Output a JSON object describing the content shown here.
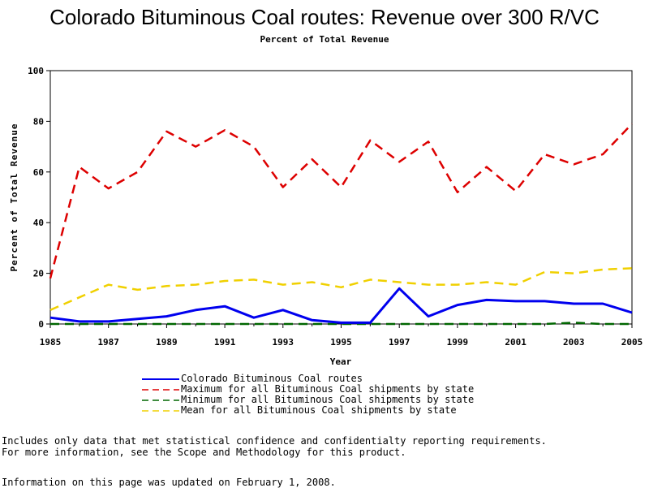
{
  "chart_data": {
    "type": "line",
    "title": "Colorado Bituminous Coal routes: Revenue over 300 R/VC",
    "subtitle": "Percent of Total Revenue",
    "xlabel": "Year",
    "ylabel": "Percent of Total Revenue",
    "xlim": [
      1985,
      2005
    ],
    "ylim": [
      0,
      100
    ],
    "x_ticks": [
      "1985",
      "1987",
      "1989",
      "1991",
      "1993",
      "1995",
      "1997",
      "1999",
      "2001",
      "2003",
      "2005"
    ],
    "y_ticks": [
      "0",
      "20",
      "40",
      "60",
      "80",
      "100"
    ],
    "x": [
      1985,
      1986,
      1987,
      1988,
      1989,
      1990,
      1991,
      1992,
      1993,
      1994,
      1995,
      1996,
      1997,
      1998,
      1999,
      2000,
      2001,
      2002,
      2003,
      2004,
      2005
    ],
    "series": [
      {
        "name": "Colorado Bituminous Coal routes",
        "color": "#0000ee",
        "style": "solid",
        "values": [
          2.5,
          1,
          1,
          2,
          3,
          5.5,
          7,
          2.5,
          5.5,
          1.5,
          0.5,
          0.5,
          14,
          3,
          7.5,
          9.5,
          9,
          9,
          8,
          8,
          4.5
        ]
      },
      {
        "name": "Maximum for all Bituminous Coal shipments by state",
        "color": "#dd0000",
        "style": "dashed",
        "values": [
          18,
          62,
          53.5,
          60,
          76,
          70,
          76.5,
          70,
          54,
          65,
          54,
          72.5,
          64,
          72,
          52,
          62,
          52.5,
          67,
          63,
          67,
          79
        ]
      },
      {
        "name": "Minimum for all Bituminous Coal shipments by state",
        "color": "#006600",
        "style": "dashed",
        "values": [
          0,
          0,
          0,
          0,
          0,
          0,
          0,
          0,
          0,
          0,
          0,
          0,
          0,
          0,
          0,
          0,
          0,
          0,
          0.5,
          0,
          0
        ]
      },
      {
        "name": "Mean for all Bituminous Coal shipments by state",
        "color": "#f0d000",
        "style": "dashed",
        "values": [
          5.5,
          10.5,
          15.5,
          13.5,
          15,
          15.5,
          17,
          17.5,
          15.5,
          16.5,
          14.5,
          17.5,
          16.5,
          15.5,
          15.5,
          16.5,
          15.5,
          20.5,
          20,
          21.5,
          22
        ]
      }
    ],
    "grid": false,
    "legend_position": "bottom"
  },
  "notes": {
    "line1": "Includes only data that met statistical confidence and confidentialty reporting requirements.",
    "line2": "For more information, see the Scope and Methodology for this product.",
    "updated": "Information on this page was updated on February 1, 2008."
  }
}
